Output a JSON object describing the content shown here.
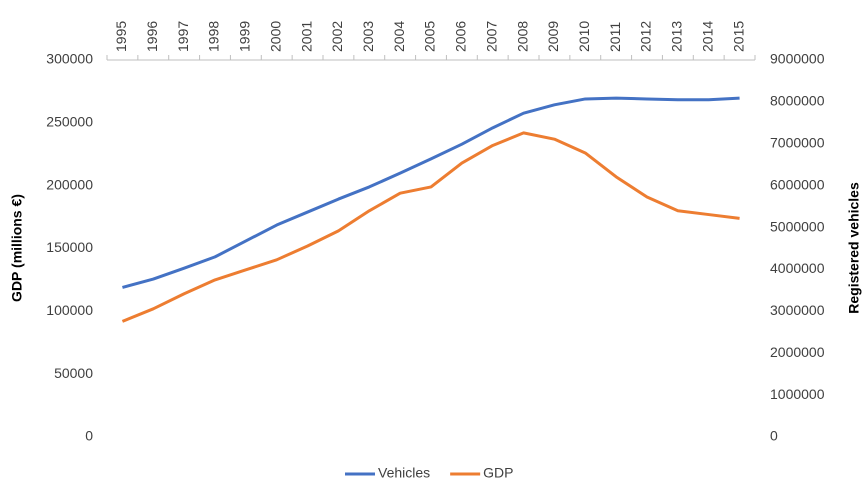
{
  "chart_data": {
    "type": "line",
    "categories": [
      "1995",
      "1996",
      "1997",
      "1998",
      "1999",
      "2000",
      "2001",
      "2002",
      "2003",
      "2004",
      "2005",
      "2006",
      "2007",
      "2008",
      "2009",
      "2010",
      "2011",
      "2012",
      "2013",
      "2014",
      "2015"
    ],
    "ylabel": "GDP (millions €)",
    "y2label": "Registered vehicles",
    "ylim": [
      0,
      300000
    ],
    "yticks": [
      0,
      50000,
      100000,
      150000,
      200000,
      250000,
      300000
    ],
    "y2lim": [
      0,
      9000000
    ],
    "y2ticks": [
      0,
      1000000,
      2000000,
      3000000,
      4000000,
      5000000,
      6000000,
      7000000,
      8000000,
      9000000
    ],
    "series": [
      {
        "name": "Vehicles",
        "color": "#4472c4",
        "axis": "y2",
        "values": [
          3570000,
          3770000,
          4030000,
          4300000,
          4680000,
          5060000,
          5370000,
          5680000,
          5970000,
          6300000,
          6640000,
          6990000,
          7380000,
          7730000,
          7930000,
          8070000,
          8090000,
          8070000,
          8050000,
          8050000,
          8090000
        ]
      },
      {
        "name": "GDP",
        "color": "#ed7d31",
        "axis": "y",
        "values": [
          92000,
          102000,
          114000,
          125000,
          133000,
          141000,
          152000,
          164000,
          180000,
          194000,
          199000,
          218000,
          232000,
          242000,
          237000,
          226000,
          207000,
          191000,
          180000,
          177000,
          174000
        ]
      }
    ],
    "legend": "bottom"
  }
}
